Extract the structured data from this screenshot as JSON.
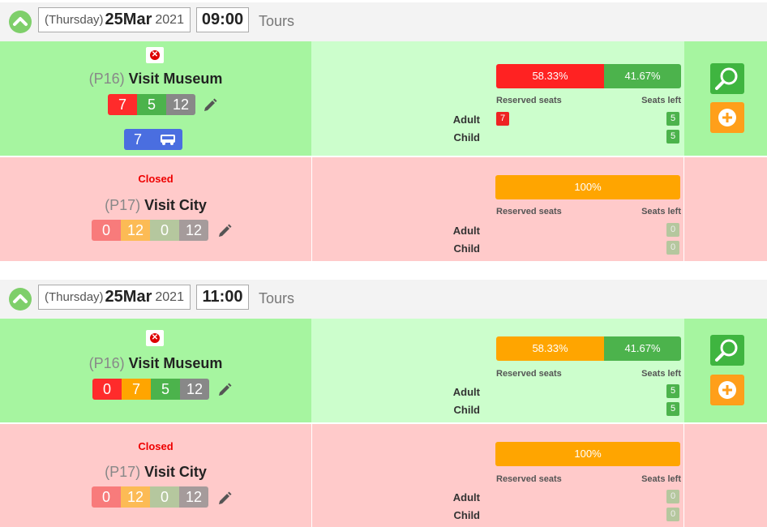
{
  "blocks": [
    {
      "date": {
        "weekday": "(Thursday)",
        "day": "25",
        "month": "Mar",
        "year": "2021"
      },
      "time": "09:00",
      "category": "Tours",
      "tours": [
        {
          "status": "open",
          "code": "(P16)",
          "name": "Visit Museum",
          "counts": [
            "7",
            "5",
            "12"
          ],
          "transport_count": "7",
          "progress": [
            {
              "label": "58.33%",
              "value": 58.33,
              "color": "red"
            },
            {
              "label": "41.67%",
              "value": 41.67,
              "color": "green"
            }
          ],
          "reserved_label": "Reserved seats",
          "left_label": "Seats left",
          "tickets": [
            {
              "type": "Adult",
              "reserved": "7",
              "left": "5"
            },
            {
              "type": "Child",
              "reserved": "",
              "left": "5"
            }
          ]
        },
        {
          "status": "closed",
          "closed_label": "Closed",
          "code": "(P17)",
          "name": "Visit City",
          "counts": [
            "0",
            "12",
            "0",
            "12"
          ],
          "progress": [
            {
              "label": "100%",
              "value": 100,
              "color": "orange"
            }
          ],
          "reserved_label": "Reserved seats",
          "left_label": "Seats left",
          "tickets": [
            {
              "type": "Adult",
              "reserved": "",
              "left": "0"
            },
            {
              "type": "Child",
              "reserved": "",
              "left": "0"
            }
          ]
        }
      ]
    },
    {
      "date": {
        "weekday": "(Thursday)",
        "day": "25",
        "month": "Mar",
        "year": "2021"
      },
      "time": "11:00",
      "category": "Tours",
      "tours": [
        {
          "status": "open",
          "code": "(P16)",
          "name": "Visit Museum",
          "counts": [
            "0",
            "7",
            "5",
            "12"
          ],
          "progress": [
            {
              "label": "58.33%",
              "value": 58.33,
              "color": "orange"
            },
            {
              "label": "41.67%",
              "value": 41.67,
              "color": "green"
            }
          ],
          "reserved_label": "Reserved seats",
          "left_label": "Seats left",
          "tickets": [
            {
              "type": "Adult",
              "reserved": "",
              "left": "5"
            },
            {
              "type": "Child",
              "reserved": "",
              "left": "5"
            }
          ]
        },
        {
          "status": "closed",
          "closed_label": "Closed",
          "code": "(P17)",
          "name": "Visit City",
          "counts": [
            "0",
            "12",
            "0",
            "12"
          ],
          "progress": [
            {
              "label": "100%",
              "value": 100,
              "color": "orange"
            }
          ],
          "reserved_label": "Reserved seats",
          "left_label": "Seats left",
          "tickets": [
            {
              "type": "Adult",
              "reserved": "",
              "left": "0"
            },
            {
              "type": "Child",
              "reserved": "",
              "left": "0"
            }
          ]
        }
      ]
    }
  ],
  "icons": {
    "collapse": "chevron-up-icon",
    "remove": "close-circle-icon",
    "edit": "pencil-icon",
    "transport": "bus-icon",
    "search": "magnifier-icon",
    "add": "plus-circle-icon"
  }
}
